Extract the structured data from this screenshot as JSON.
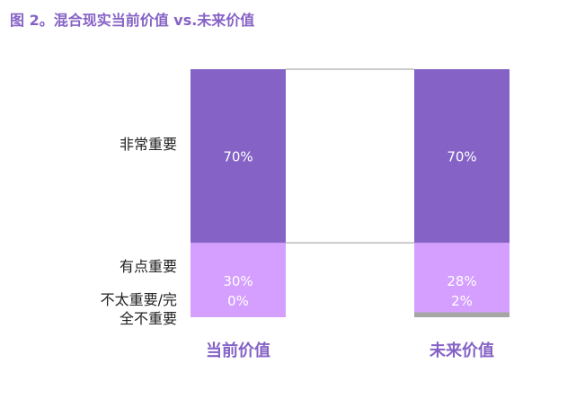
{
  "title": "图 2。混合现实当前价值 vs.未来价值",
  "chart_data": {
    "type": "bar",
    "stacked": true,
    "categories": [
      "当前价值",
      "未来价值"
    ],
    "series": [
      {
        "name": "不太重要/完全不重要",
        "values": [
          0,
          2
        ],
        "color": "#a6a6a6",
        "labels": [
          "0%",
          "2%"
        ]
      },
      {
        "name": "有点重要",
        "values": [
          30,
          28
        ],
        "color": "#d49ffe",
        "labels": [
          "30%",
          "28%"
        ]
      },
      {
        "name": "非常重要",
        "values": [
          70,
          70
        ],
        "color": "#8562c6",
        "labels": [
          "70%",
          "70%"
        ]
      }
    ],
    "ylim": [
      0,
      100
    ],
    "grid": false,
    "legend": "left",
    "category_label_color": "#8562c6"
  }
}
